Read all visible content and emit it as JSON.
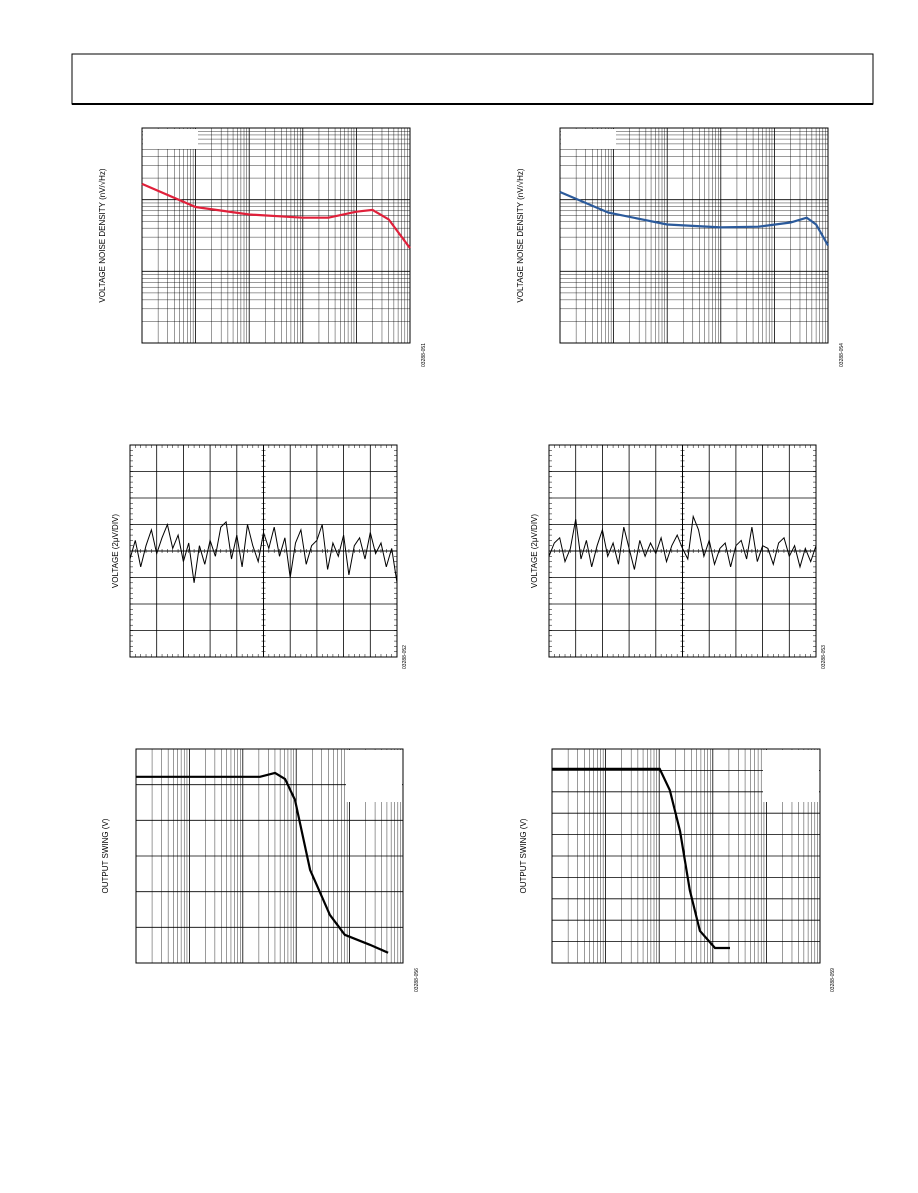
{
  "chart_data": [
    {
      "type": "line",
      "y_label": "VOLTAGE NOISE DENSITY (nV/√Hz)",
      "code": "03288-051",
      "xscale": "log",
      "yscale": "log",
      "xlim": [
        1,
        100000
      ],
      "ylim": [
        1,
        1000
      ],
      "grid": true,
      "color": "#e0203a",
      "x": [
        1,
        10,
        100,
        1000,
        3000,
        10000,
        20000,
        40000,
        100000
      ],
      "values": [
        166,
        79,
        62,
        56,
        56,
        68,
        72,
        53,
        21
      ]
    },
    {
      "type": "line",
      "y_label": "VOLTAGE NOISE DENSITY (nV/√Hz)",
      "code": "03288-054",
      "xscale": "log",
      "yscale": "log",
      "xlim": [
        1,
        100000
      ],
      "ylim": [
        1,
        1000
      ],
      "grid": true,
      "color": "#2b5a9b",
      "x": [
        1,
        8,
        100,
        1000,
        5000,
        20000,
        40000,
        60000,
        100000
      ],
      "values": [
        128,
        66,
        45,
        41,
        42,
        48,
        56,
        45,
        23
      ]
    },
    {
      "type": "line",
      "y_label": "VOLTAGE (2μV/DIV)",
      "code": "03288-052",
      "xscale": "linear",
      "yscale": "linear",
      "xlim": [
        0,
        10
      ],
      "ylim": [
        -4,
        4
      ],
      "grid": true,
      "color": "#000000",
      "x": [
        0,
        0.2,
        0.4,
        0.6,
        0.8,
        1,
        1.2,
        1.4,
        1.6,
        1.8,
        2,
        2.2,
        2.4,
        2.6,
        2.8,
        3,
        3.2,
        3.4,
        3.6,
        3.8,
        4,
        4.2,
        4.4,
        4.6,
        4.8,
        5,
        5.2,
        5.4,
        5.6,
        5.8,
        6,
        6.2,
        6.4,
        6.6,
        6.8,
        7,
        7.2,
        7.4,
        7.6,
        7.8,
        8,
        8.2,
        8.4,
        8.6,
        8.8,
        9,
        9.2,
        9.4,
        9.6,
        9.8,
        10
      ],
      "values": [
        -0.3,
        0.4,
        -0.6,
        0.2,
        0.8,
        -0.1,
        0.5,
        1.0,
        0.1,
        0.6,
        -0.4,
        0.3,
        -1.2,
        0.2,
        -0.5,
        0.4,
        -0.2,
        0.9,
        1.1,
        -0.3,
        0.6,
        -0.6,
        1.0,
        0.2,
        -0.4,
        0.7,
        0.1,
        0.9,
        -0.2,
        0.5,
        -1.0,
        0.3,
        0.8,
        -0.5,
        0.2,
        0.4,
        1.0,
        -0.7,
        0.3,
        -0.2,
        0.6,
        -0.9,
        0.2,
        0.5,
        -0.3,
        0.7,
        -0.1,
        0.3,
        -0.6,
        0.1,
        -1.2
      ]
    },
    {
      "type": "line",
      "y_label": "VOLTAGE (2μV/DIV)",
      "code": "03288-053",
      "xscale": "linear",
      "yscale": "linear",
      "xlim": [
        0,
        10
      ],
      "ylim": [
        -4,
        4
      ],
      "grid": true,
      "color": "#000000",
      "x": [
        0,
        0.2,
        0.4,
        0.6,
        0.8,
        1,
        1.2,
        1.4,
        1.6,
        1.8,
        2,
        2.2,
        2.4,
        2.6,
        2.8,
        3,
        3.2,
        3.4,
        3.6,
        3.8,
        4,
        4.2,
        4.4,
        4.6,
        4.8,
        5,
        5.2,
        5.4,
        5.6,
        5.8,
        6,
        6.2,
        6.4,
        6.6,
        6.8,
        7,
        7.2,
        7.4,
        7.6,
        7.8,
        8,
        8.2,
        8.4,
        8.6,
        8.8,
        9,
        9.2,
        9.4,
        9.6,
        9.8,
        10
      ],
      "values": [
        -0.2,
        0.3,
        0.5,
        -0.4,
        0.1,
        1.2,
        -0.3,
        0.4,
        -0.6,
        0.2,
        0.8,
        -0.2,
        0.3,
        -0.5,
        0.9,
        0.1,
        -0.7,
        0.4,
        -0.2,
        0.3,
        -0.1,
        0.5,
        -0.4,
        0.2,
        0.6,
        0.1,
        -0.3,
        1.3,
        0.8,
        -0.2,
        0.4,
        -0.5,
        0.1,
        0.3,
        -0.6,
        0.2,
        0.4,
        -0.3,
        0.9,
        -0.4,
        0.2,
        0.1,
        -0.5,
        0.3,
        0.5,
        -0.2,
        0.2,
        -0.6,
        0.1,
        -0.4,
        0.2
      ]
    },
    {
      "type": "line",
      "y_label": "OUTPUT SWING (V)",
      "code": "03288-056",
      "xscale": "log",
      "yscale": "linear",
      "xlim": [
        100,
        10000000
      ],
      "ylim": [
        0,
        6
      ],
      "grid": true,
      "color": "#000000",
      "x": [
        100,
        21000,
        40000,
        62000,
        95000,
        182000,
        427000,
        813000,
        2400000,
        5250000
      ],
      "values": [
        5.22,
        5.22,
        5.33,
        5.16,
        4.57,
        2.61,
        1.35,
        0.79,
        0.51,
        0.29
      ]
    },
    {
      "type": "line",
      "y_label": "OUTPUT SWING (V)",
      "code": "03288-059",
      "xscale": "log",
      "yscale": "linear",
      "xlim": [
        100,
        10000000
      ],
      "ylim": [
        0,
        10
      ],
      "grid": true,
      "color": "#000000",
      "x": [
        100,
        10200,
        15800,
        24500,
        37200,
        57500,
        110000,
        209000
      ],
      "values": [
        9.07,
        9.07,
        8.08,
        6.15,
        3.4,
        1.5,
        0.7,
        0.7
      ]
    }
  ]
}
